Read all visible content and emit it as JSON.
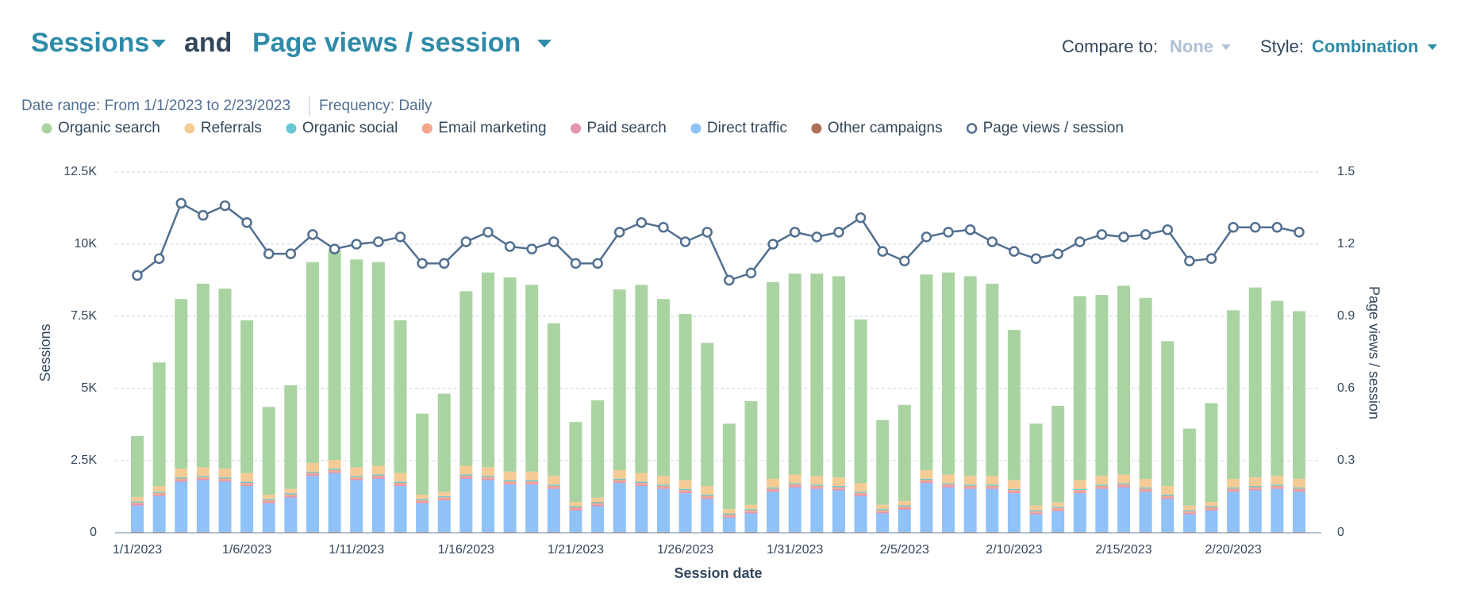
{
  "header": {
    "metric1": "Sessions",
    "joiner": "and",
    "metric2": "Page views / session",
    "compare_label": "Compare to:",
    "compare_value": "None",
    "style_label": "Style:",
    "style_value": "Combination",
    "date_range": "Date range: From 1/1/2023 to 2/23/2023",
    "frequency": "Frequency: Daily"
  },
  "chart_data": {
    "type": "bar",
    "stacked": true,
    "x_label": "Session date",
    "y_label": "Sessions",
    "y2_label": "Page views / session",
    "grid": true,
    "categories": [
      "1/1/2023",
      null,
      null,
      null,
      null,
      "1/6/2023",
      null,
      null,
      null,
      null,
      "1/11/2023",
      null,
      null,
      null,
      null,
      "1/16/2023",
      null,
      null,
      null,
      null,
      "1/21/2023",
      null,
      null,
      null,
      null,
      "1/26/2023",
      null,
      null,
      null,
      null,
      "1/31/2023",
      null,
      null,
      null,
      null,
      "2/5/2023",
      null,
      null,
      null,
      null,
      "2/10/2023",
      null,
      null,
      null,
      null,
      "2/15/2023",
      null,
      null,
      null,
      null,
      "2/20/2023",
      null,
      null,
      null
    ],
    "ylim": [
      0,
      12500
    ],
    "yticks": [
      0,
      {
        "value": 2500,
        "label": "2.5K"
      },
      {
        "value": 5000,
        "label": "5K"
      },
      {
        "value": 7500,
        "label": "7.5K"
      },
      {
        "value": 10000,
        "label": "10K"
      },
      {
        "value": 12500,
        "label": "12.5K"
      }
    ],
    "y2lim": [
      0,
      1.5
    ],
    "y2ticks": [
      0,
      0.3,
      0.6,
      0.9,
      1.2,
      1.5
    ],
    "series": [
      {
        "name": "Organic search",
        "color": "#aad3a2",
        "values": [
          2110,
          4280,
          5880,
          6360,
          6240,
          5290,
          3040,
          3590,
          6960,
          7280,
          7200,
          7060,
          5290,
          2810,
          3400,
          6050,
          6750,
          6730,
          6470,
          5290,
          2770,
          3370,
          6260,
          6520,
          6130,
          5760,
          4960,
          2960,
          3590,
          6820,
          6960,
          7010,
          6970,
          5670,
          2930,
          3330,
          6780,
          7000,
          6920,
          6660,
          5210,
          2840,
          3350,
          6380,
          6270,
          6540,
          6270,
          5020,
          2670,
          3420,
          5840,
          6580,
          6070,
          5810
        ]
      },
      {
        "name": "Referrals",
        "color": "#f5cb95",
        "values": [
          150,
          200,
          300,
          300,
          300,
          300,
          150,
          150,
          300,
          300,
          300,
          300,
          300,
          150,
          150,
          300,
          300,
          300,
          300,
          300,
          150,
          150,
          300,
          300,
          300,
          300,
          300,
          150,
          150,
          300,
          300,
          300,
          300,
          300,
          150,
          150,
          300,
          300,
          300,
          300,
          300,
          150,
          150,
          300,
          300,
          300,
          300,
          300,
          150,
          150,
          300,
          300,
          300,
          300
        ]
      },
      {
        "name": "Organic social",
        "color": "#6ac7d4",
        "values": [
          40,
          40,
          40,
          40,
          40,
          40,
          40,
          40,
          40,
          40,
          40,
          40,
          40,
          40,
          40,
          40,
          40,
          40,
          40,
          40,
          40,
          40,
          40,
          40,
          40,
          40,
          40,
          40,
          40,
          40,
          40,
          40,
          40,
          40,
          40,
          40,
          40,
          40,
          40,
          40,
          40,
          40,
          40,
          40,
          40,
          40,
          40,
          40,
          40,
          40,
          40,
          40,
          40,
          40
        ]
      },
      {
        "name": "Email marketing",
        "color": "#f2a68b",
        "values": [
          60,
          60,
          60,
          60,
          60,
          60,
          60,
          60,
          60,
          60,
          60,
          60,
          60,
          60,
          60,
          60,
          60,
          60,
          60,
          60,
          60,
          60,
          60,
          60,
          60,
          60,
          60,
          60,
          60,
          60,
          60,
          60,
          60,
          60,
          60,
          60,
          60,
          60,
          60,
          60,
          60,
          60,
          60,
          60,
          60,
          60,
          60,
          60,
          60,
          60,
          60,
          60,
          60,
          60
        ]
      },
      {
        "name": "Paid search",
        "color": "#e394ae",
        "values": [
          50,
          50,
          50,
          50,
          50,
          50,
          50,
          50,
          50,
          50,
          50,
          50,
          50,
          50,
          50,
          50,
          50,
          50,
          50,
          50,
          50,
          50,
          50,
          50,
          50,
          50,
          50,
          50,
          50,
          50,
          50,
          50,
          50,
          50,
          50,
          50,
          50,
          50,
          50,
          50,
          50,
          50,
          50,
          50,
          50,
          50,
          50,
          50,
          50,
          50,
          50,
          50,
          50,
          50
        ]
      },
      {
        "name": "Direct traffic",
        "color": "#8fc2f7",
        "values": [
          920,
          1250,
          1750,
          1800,
          1750,
          1600,
          1000,
          1200,
          1950,
          2050,
          1800,
          1850,
          1600,
          1000,
          1100,
          1850,
          1800,
          1650,
          1650,
          1500,
          750,
          900,
          1700,
          1600,
          1500,
          1350,
          1150,
          500,
          650,
          1400,
          1550,
          1500,
          1450,
          1250,
          650,
          780,
          1700,
          1550,
          1500,
          1500,
          1350,
          620,
          730,
          1350,
          1500,
          1550,
          1400,
          1150,
          620,
          750,
          1400,
          1450,
          1500,
          1400
        ]
      },
      {
        "name": "Other campaigns",
        "color": "#b06f55",
        "values": [
          20,
          20,
          20,
          20,
          20,
          20,
          20,
          20,
          20,
          20,
          20,
          20,
          20,
          20,
          20,
          20,
          20,
          20,
          20,
          20,
          20,
          20,
          20,
          20,
          20,
          20,
          20,
          20,
          20,
          20,
          20,
          20,
          20,
          20,
          20,
          20,
          20,
          20,
          20,
          20,
          20,
          20,
          20,
          20,
          20,
          20,
          20,
          20,
          20,
          20,
          20,
          20,
          20,
          20
        ]
      },
      {
        "name": "Page views / session",
        "type": "line",
        "axis": "y2",
        "color": "#516f90",
        "values": [
          1.07,
          1.14,
          1.37,
          1.32,
          1.36,
          1.29,
          1.16,
          1.16,
          1.24,
          1.18,
          1.2,
          1.21,
          1.23,
          1.12,
          1.12,
          1.21,
          1.25,
          1.19,
          1.18,
          1.21,
          1.12,
          1.12,
          1.25,
          1.29,
          1.27,
          1.21,
          1.25,
          1.05,
          1.08,
          1.2,
          1.25,
          1.23,
          1.25,
          1.31,
          1.17,
          1.13,
          1.23,
          1.25,
          1.26,
          1.21,
          1.17,
          1.14,
          1.16,
          1.21,
          1.24,
          1.23,
          1.24,
          1.26,
          1.13,
          1.14,
          1.27,
          1.27,
          1.27,
          1.25
        ]
      }
    ]
  }
}
